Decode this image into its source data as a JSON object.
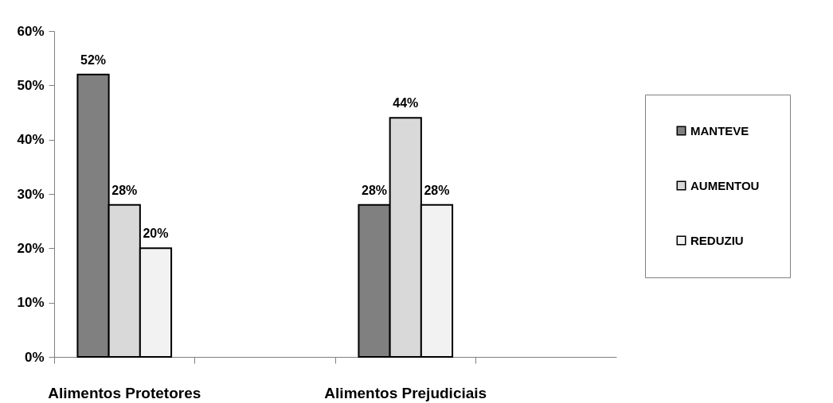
{
  "chart_data": {
    "type": "bar",
    "categories": [
      "Alimentos Protetores",
      null,
      "Alimentos Prejudiciais",
      null
    ],
    "series": [
      {
        "name": "MANTEVE",
        "color": "#808080",
        "values": [
          52,
          null,
          28,
          null
        ],
        "value_labels": [
          "52%",
          null,
          "28%",
          null
        ]
      },
      {
        "name": "AUMENTOU",
        "color": "#d9d9d9",
        "values": [
          28,
          null,
          44,
          null
        ],
        "value_labels": [
          "28%",
          null,
          "44%",
          null
        ]
      },
      {
        "name": "REDUZIU",
        "color": "#f2f2f2",
        "values": [
          20,
          null,
          28,
          null
        ],
        "value_labels": [
          "20%",
          null,
          "28%",
          null
        ]
      }
    ],
    "ylim": [
      0,
      60
    ],
    "yticks": [
      {
        "value": 0,
        "label": "0%"
      },
      {
        "value": 10,
        "label": "10%"
      },
      {
        "value": 20,
        "label": "20%"
      },
      {
        "value": 30,
        "label": "30%"
      },
      {
        "value": 40,
        "label": "40%"
      },
      {
        "value": 50,
        "label": "50%"
      },
      {
        "value": 60,
        "label": "60%"
      }
    ],
    "grid": false,
    "legend": "right"
  }
}
